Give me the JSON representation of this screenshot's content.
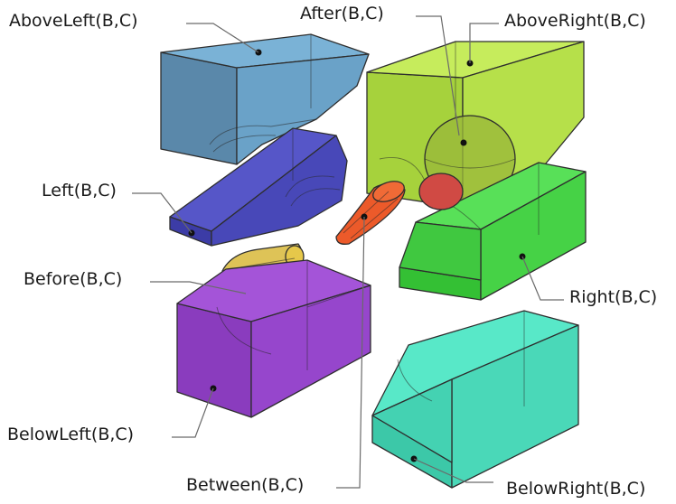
{
  "labels": {
    "above_left": "AboveLeft(B,C)",
    "after": "After(B,C)",
    "above_right": "AboveRight(B,C)",
    "left": "Left(B,C)",
    "before": "Before(B,C)",
    "right": "Right(B,C)",
    "below_left": "BelowLeft(B,C)",
    "between": "Between(B,C)",
    "below_right": "BelowRight(B,C)"
  },
  "colors": {
    "above_left": "#6a9cc0",
    "above_right": "#b6e04a",
    "after_sphere": "#9ab83a",
    "left": "#4848b4",
    "right": "#3fd23f",
    "cone_c": "#e8582a",
    "cone_before": "#d8b83a",
    "below_left": "#9a4acf",
    "below_right": "#4ae0c0"
  }
}
